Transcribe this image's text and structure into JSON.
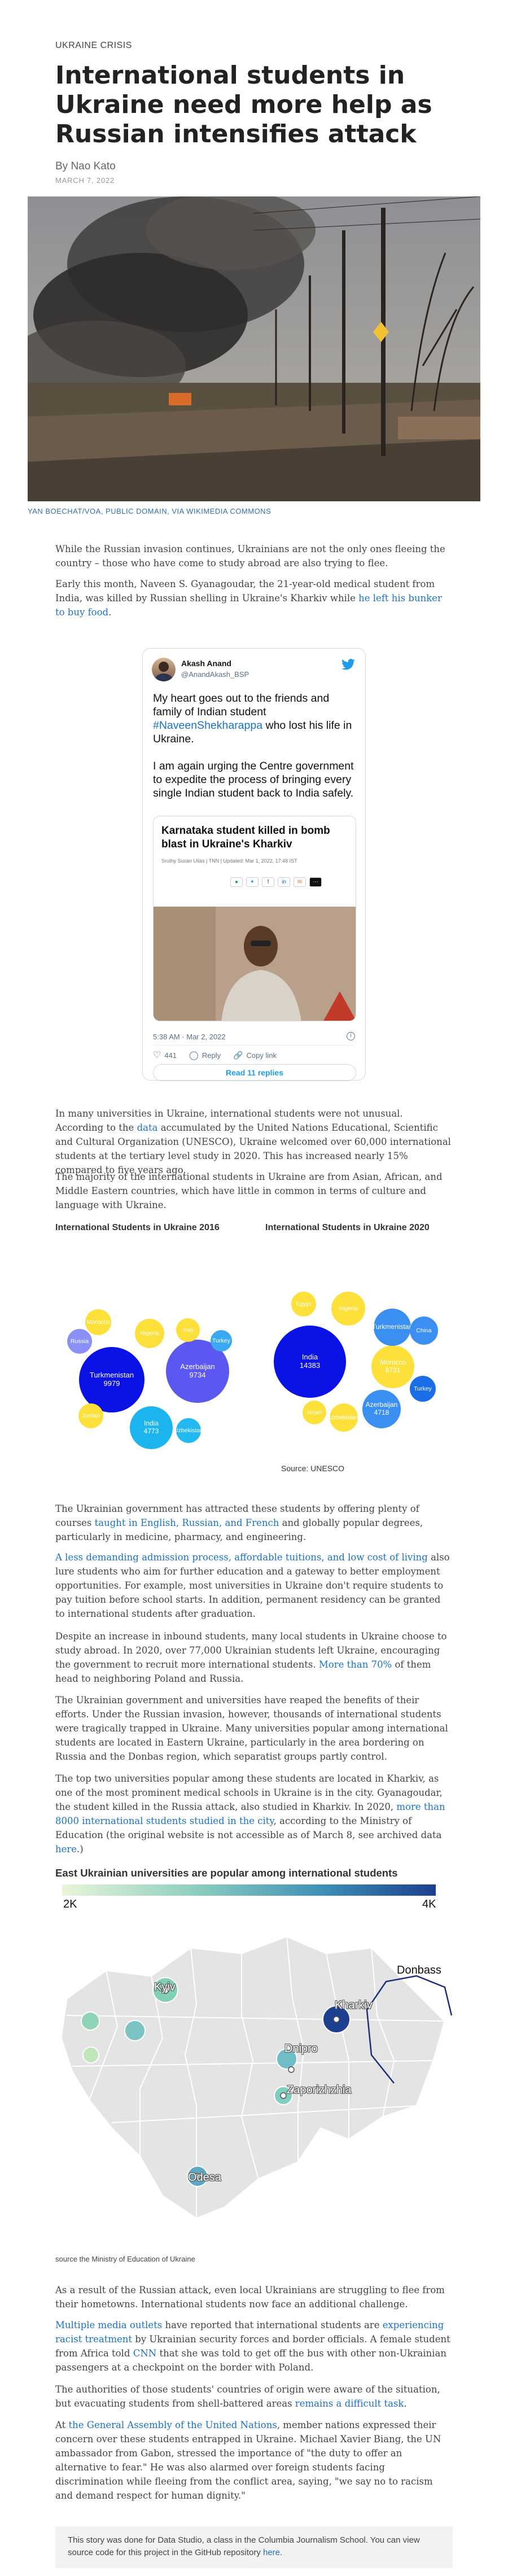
{
  "article": {
    "kicker": "UKRAINE CRISIS",
    "title": "International students in Ukraine need more help as Russian intensifies attack",
    "byline": "By Nao Kato",
    "date": "MARCH 7, 2022",
    "photo_credit": "YAN BOECHAT/VOA, PUBLIC DOMAIN, VIA WIKIMEDIA COMMONS"
  },
  "paragraphs": {
    "p1": "While the Russian invasion continues, Ukrainians are not the only ones fleeing the country – those who have come to study abroad are also trying to flee.",
    "p2_a": "Early this month, Naveen S. Gyanagoudar, the 21-year-old medical student from India, was killed by Russian shelling in Ukraine's Kharkiv while ",
    "p2_link": "he left his bunker to buy food",
    "p2_b": ".",
    "p3_a": "In many universities in Ukraine, international students were not unusual. According to the ",
    "p3_link": "data",
    "p3_b": " accumulated by the United Nations Educational, Scientific and Cultural Organization (UNESCO), Ukraine welcomed over 60,000 international students at the tertiary level study in 2020. This has increased nearly 15% compared to five years ago.",
    "p4": "The majority of the international students in Ukraine are from Asian, African, and Middle Eastern countries, which have little in common in terms of culture and language with Ukraine.",
    "p5_a": "The Ukrainian government has attracted these students by offering plenty of courses ",
    "p5_link": "taught in English, Russian, and French",
    "p5_b": " and globally popular degrees, particularly in medicine, pharmacy, and engineering.",
    "p6_link": "A less demanding admission process, affordable tuitions, and low cost of living",
    "p6_b": " also lure students who aim for further education and a gateway to better employment opportunities. For example, most universities in Ukraine don't require students to pay tuition before school starts. In addition, permanent residency can be granted to international students after graduation.",
    "p7_a": "Despite an increase in inbound students, many local students in Ukraine choose to study abroad. In 2020, over 77,000 Ukrainian students left Ukraine, encouraging the government to recruit more international students. ",
    "p7_link": "More than 70%",
    "p7_b": " of them head to neighboring Poland and Russia.",
    "p8": "The Ukrainian government and universities have reaped the benefits of their efforts. Under the Russian invasion, however, thousands of international students were tragically trapped in Ukraine. Many universities popular among international students are located in Eastern Ukraine, particularly in the area bordering on Russia and the Donbas region, which separatist groups partly control.",
    "p9_a": "The top two universities popular among these students are located in Kharkiv, as one of the most prominent medical schools in Ukraine is in the city. Gyanagoudar, the student killed in the Russia attack, also studied in Kharkiv. In 2020, ",
    "p9_link": "more than 8000 international students studied in the city",
    "p9_b": ", according to the Ministry of Education (the original website is not accessible as of March 8, see archived data ",
    "p9_link2": "here",
    "p9_c": ".)",
    "p10": "As a result of the Russian attack, even local Ukrainians are struggling to flee from their hometowns. International students now face an additional challenge.",
    "p11_link": "Multiple media outlets",
    "p11_a": " have reported that international students are ",
    "p11_link2": "experiencing racist treatment",
    "p11_b": " by Ukrainian security forces and border officials. A female student from Africa told ",
    "p11_link3": "CNN",
    "p11_c": " that she was told to get off the bus with other non-Ukrainian passengers at a checkpoint on the border with Poland.",
    "p12_a": "The authorities of those students' countries of origin were aware of the situation, but evacuating students from shell-battered areas ",
    "p12_link": "remains a difficult task",
    "p12_b": ".",
    "p13_a": "At ",
    "p13_link": "the General Assembly of the United Nations",
    "p13_b": ", member nations expressed their concern over these students entrapped in Ukraine. Michael Xavier Biang, the UN ambassador from Gabon, stressed the importance of \"the duty to offer an alternative to fear.\" He was also alarmed over foreign students facing discrimination while fleeing from the conflict area, saying, \"we say no to racism and demand respect for human dignity.\""
  },
  "tweet": {
    "name": "Akash Anand",
    "handle": "@AnandAkash_BSP",
    "text_a": "My heart goes out to the friends and family of Indian student ",
    "hashtag": "#NaveenShekharappa",
    "text_b": " who lost his life in Ukraine.\n\nI am again urging the Centre government to expedite the process of bringing every single Indian student back to India safely.",
    "card_title": "Karnataka student killed in bomb blast in Ukraine's Kharkiv",
    "card_meta": "Sruthy Susan Ullas | TNN | Updated: Mar 1, 2022, 17:48 IST",
    "timestamp": "5:38 AM · Mar 2, 2022",
    "likes": "441",
    "reply_label": "Reply",
    "copy_label": "Copy link",
    "read_replies": "Read 11 replies"
  },
  "chart_data": [
    {
      "type": "bubble",
      "title": "International Students in Ukraine 2016",
      "labels": [
        "Turkmenistan",
        "Azerbaijan",
        "India",
        "Morocco",
        "Nigeria",
        "Iraq",
        "Russia",
        "Turkey",
        "Jordan",
        "Uzbekistan"
      ],
      "values": [
        9979,
        9734,
        4773,
        null,
        null,
        null,
        null,
        null,
        null,
        null
      ],
      "colors": [
        "#0a12e6",
        "#5a58f0",
        "#1db5f0",
        "#fde03a",
        "#fde03a",
        "#fde03a",
        "#8a90f5",
        "#3aa9f2",
        "#fde03a",
        "#22b8f0"
      ]
    },
    {
      "type": "bubble",
      "title": "International Students in Ukraine 2020",
      "labels": [
        "India",
        "Morocco",
        "Azerbaijan",
        "Turkmenistan",
        "Nigeria",
        "Egypt",
        "China",
        "Turkey",
        "Israel",
        "Uzbekistan"
      ],
      "values": [
        14383,
        8731,
        4718,
        null,
        null,
        null,
        null,
        null,
        null,
        null
      ],
      "colors": [
        "#0a12e6",
        "#fde03a",
        "#3a8ff0",
        "#3a8ff0",
        "#fde03a",
        "#fde03a",
        "#3a8ff0",
        "#1a6fe8",
        "#fde03a",
        "#fde03a"
      ]
    }
  ],
  "chart_source": "Source: UNESCO",
  "map": {
    "title": "East Ukrainian universities are popular among international students",
    "legend_low": "2K",
    "legend_high": "4K",
    "cities": [
      "Kyiv",
      "Kharkiv",
      "Dnipro",
      "Zaporizhzhia",
      "Odesa",
      "Donbass"
    ],
    "source": "source the Ministry of Education of Ukraine"
  },
  "footer_note_a": "This story was done for Data Studio, a class in the Columbia Journalism School. You can view source code for this project in the GitHub repository ",
  "footer_note_link": "here",
  "footer_note_b": "."
}
